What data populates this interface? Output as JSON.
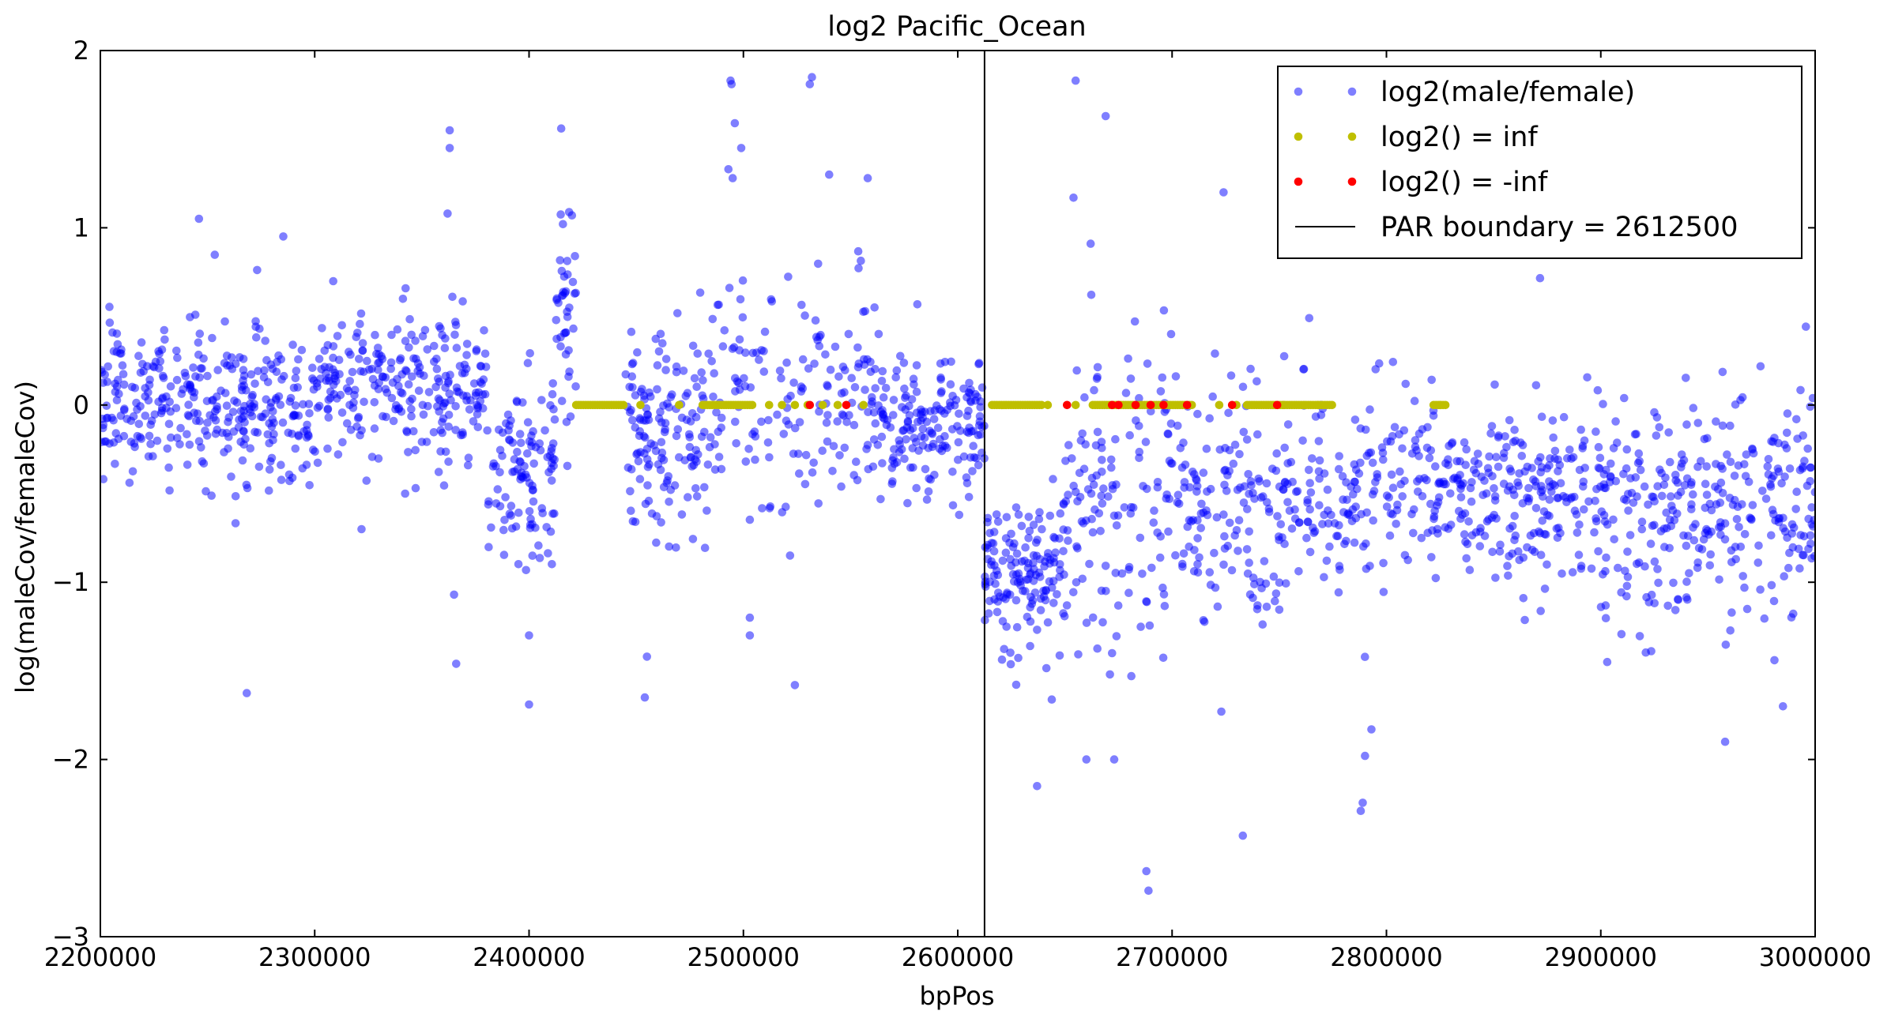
{
  "chart_data": {
    "type": "scatter",
    "title": "log2 Pacific_Ocean",
    "xlabel": "bpPos",
    "ylabel": "log(maleCov/femaleCov)",
    "xlim": [
      2200000,
      3000000
    ],
    "ylim": [
      -3,
      2
    ],
    "x_ticks": [
      2200000,
      2300000,
      2400000,
      2500000,
      2600000,
      2700000,
      2800000,
      2900000,
      3000000
    ],
    "x_tick_labels": [
      "2200000",
      "2300000",
      "2400000",
      "2500000",
      "2600000",
      "2700000",
      "2800000",
      "2900000",
      "3000000"
    ],
    "y_ticks": [
      -3,
      -2,
      -1,
      0,
      1,
      2
    ],
    "y_tick_labels": [
      "−3",
      "−2",
      "−1",
      "0",
      "1",
      "2"
    ],
    "grid": false,
    "legend_position": "top-right",
    "legend": [
      {
        "label": "log2(male/female)",
        "marker": "dot",
        "color": "#0000ff"
      },
      {
        "label": "log2() = inf",
        "marker": "dot",
        "color": "#bfbf00"
      },
      {
        "label": "log2() = -inf",
        "marker": "dot",
        "color": "#ff0000"
      },
      {
        "label": "PAR boundary = 2612500",
        "marker": "line",
        "color": "#000000"
      }
    ],
    "par_boundary": 2612500,
    "series": [
      {
        "name": "log2(male/female)",
        "color": "#0000ff",
        "regions": [
          {
            "x_range": [
              2200000,
              2300000
            ],
            "mean": 0.0,
            "sd": 0.2,
            "count": 330
          },
          {
            "x_range": [
              2300000,
              2380000
            ],
            "mean": 0.1,
            "sd": 0.2,
            "count": 250
          },
          {
            "x_range": [
              2380000,
              2412000
            ],
            "mean": -0.4,
            "sd": 0.25,
            "count": 110
          },
          {
            "x_range": [
              2412000,
              2422000
            ],
            "mean": 0.5,
            "sd": 0.25,
            "count": 40
          },
          {
            "x_range": [
              2445000,
              2480000
            ],
            "mean": -0.2,
            "sd": 0.35,
            "count": 130
          },
          {
            "x_range": [
              2480000,
              2560000
            ],
            "mean": 0.0,
            "sd": 0.35,
            "count": 170
          },
          {
            "x_range": [
              2560000,
              2612500
            ],
            "mean": -0.1,
            "sd": 0.2,
            "count": 180
          },
          {
            "x_range": [
              2612500,
              2650000
            ],
            "mean": -0.95,
            "sd": 0.2,
            "count": 150
          },
          {
            "x_range": [
              2650000,
              2700000
            ],
            "mean": -0.6,
            "sd": 0.45,
            "count": 130
          },
          {
            "x_range": [
              2700000,
              2800000
            ],
            "mean": -0.55,
            "sd": 0.3,
            "count": 260
          },
          {
            "x_range": [
              2800000,
              2900000
            ],
            "mean": -0.5,
            "sd": 0.25,
            "count": 290
          },
          {
            "x_range": [
              2900000,
              3000000
            ],
            "mean": -0.55,
            "sd": 0.3,
            "count": 300
          }
        ],
        "points": [
          [
            2363000,
            1.55
          ],
          [
            2363000,
            1.45
          ],
          [
            2362000,
            1.08
          ],
          [
            2415000,
            1.56
          ],
          [
            2420000,
            1.07
          ],
          [
            2494000,
            1.83
          ],
          [
            2494500,
            1.81
          ],
          [
            2532000,
            1.85
          ],
          [
            2531000,
            1.81
          ],
          [
            2496000,
            1.59
          ],
          [
            2495000,
            1.28
          ],
          [
            2493000,
            1.33
          ],
          [
            2540000,
            1.3
          ],
          [
            2558000,
            1.28
          ],
          [
            2499000,
            1.45
          ],
          [
            2454000,
            -1.65
          ],
          [
            2455000,
            -1.42
          ],
          [
            2400000,
            -1.69
          ],
          [
            2400000,
            -1.3
          ],
          [
            2366000,
            -1.46
          ],
          [
            2365000,
            -1.07
          ],
          [
            2524000,
            -1.58
          ],
          [
            2503000,
            -1.3
          ],
          [
            2503000,
            -1.2
          ],
          [
            2655000,
            1.83
          ],
          [
            2669000,
            1.63
          ],
          [
            2654000,
            1.17
          ],
          [
            2662000,
            0.91
          ],
          [
            2724000,
            1.2
          ],
          [
            2720000,
            0.29
          ],
          [
            2764000,
            0.49
          ],
          [
            2660000,
            -2.0
          ],
          [
            2673000,
            -2.0
          ],
          [
            2637000,
            -2.15
          ],
          [
            2688000,
            -2.63
          ],
          [
            2689000,
            -2.74
          ],
          [
            2733000,
            -2.43
          ],
          [
            2788000,
            -2.29
          ],
          [
            2790000,
            -1.98
          ],
          [
            2793000,
            -1.83
          ],
          [
            2958000,
            -1.9
          ],
          [
            2985000,
            -1.7
          ],
          [
            2981000,
            -1.44
          ],
          [
            2903000,
            -1.45
          ],
          [
            2723000,
            -1.73
          ],
          [
            2681000,
            -1.53
          ],
          [
            2671000,
            -1.52
          ],
          [
            2672000,
            -1.4
          ]
        ]
      },
      {
        "name": "log2() = inf",
        "color": "#bfbf00",
        "y": 0,
        "x_ranges": [
          [
            2422000,
            2445000
          ],
          [
            2481000,
            2505000
          ],
          [
            2616000,
            2640000
          ],
          [
            2663000,
            2710000
          ],
          [
            2735000,
            2775000
          ],
          [
            2822000,
            2828000
          ]
        ],
        "points": [
          2452000,
          2470000,
          2512000,
          2518000,
          2524000,
          2530000,
          2537000,
          2544000,
          2556000,
          2642000,
          2655000,
          2722000,
          2730000,
          2752000,
          2768000,
          2825000
        ]
      },
      {
        "name": "log2() = -inf",
        "color": "#ff0000",
        "y": 0,
        "points": [
          2531000,
          2548000,
          2651000,
          2672000,
          2675000,
          2683000,
          2690000,
          2696000,
          2707000,
          2728000,
          2749000
        ]
      }
    ]
  }
}
